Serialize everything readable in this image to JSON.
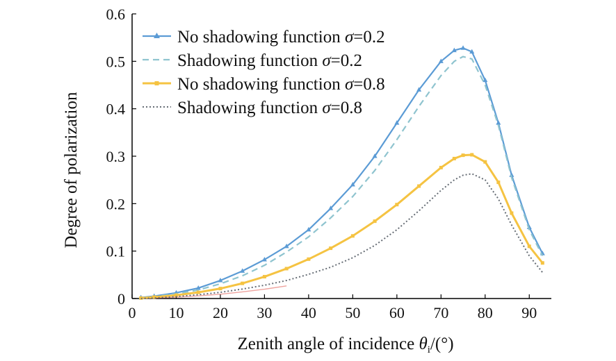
{
  "chart_data": {
    "type": "line",
    "title": "",
    "xlabel_main": "Zenith angle of incidence ",
    "xlabel_symbol": "θ",
    "xlabel_sub": "i",
    "xlabel_unit": "/(°)",
    "ylabel": "Degree of polarization",
    "xlim": [
      0,
      95
    ],
    "ylim": [
      0,
      0.6
    ],
    "xticks": [
      0,
      10,
      20,
      30,
      40,
      50,
      60,
      70,
      80,
      90
    ],
    "yticks": [
      "0",
      "0.1",
      "0.2",
      "0.3",
      "0.4",
      "0.5",
      "0.6"
    ],
    "grid": false,
    "legend_position": "top-left",
    "x": [
      2,
      5,
      10,
      15,
      20,
      25,
      30,
      35,
      40,
      45,
      50,
      55,
      60,
      65,
      70,
      73,
      75,
      77,
      80,
      83,
      86,
      90,
      93
    ],
    "series": [
      {
        "name_prefix": "No shadowing function ",
        "name_symbol": "σ",
        "name_suffix": "=0.2",
        "color": "#5b9bd5",
        "style": "solid-triangle",
        "values": [
          0.002,
          0.005,
          0.012,
          0.022,
          0.038,
          0.058,
          0.082,
          0.11,
          0.145,
          0.19,
          0.24,
          0.3,
          0.37,
          0.44,
          0.5,
          0.523,
          0.528,
          0.52,
          0.46,
          0.37,
          0.26,
          0.15,
          0.095
        ]
      },
      {
        "name_prefix": "Shadowing function ",
        "name_symbol": "σ",
        "name_suffix": "=0.2",
        "color": "#8fc4cf",
        "style": "dashed",
        "values": [
          0.001,
          0.004,
          0.01,
          0.018,
          0.031,
          0.048,
          0.07,
          0.098,
          0.13,
          0.17,
          0.215,
          0.27,
          0.335,
          0.405,
          0.47,
          0.5,
          0.51,
          0.505,
          0.45,
          0.365,
          0.255,
          0.145,
          0.09
        ]
      },
      {
        "name_prefix": "No shadowing function ",
        "name_symbol": "σ",
        "name_suffix": "=0.8",
        "color": "#f5c342",
        "style": "solid-square",
        "values": [
          0.001,
          0.003,
          0.007,
          0.013,
          0.021,
          0.032,
          0.046,
          0.063,
          0.083,
          0.106,
          0.132,
          0.163,
          0.198,
          0.237,
          0.276,
          0.295,
          0.302,
          0.303,
          0.288,
          0.245,
          0.18,
          0.11,
          0.075
        ]
      },
      {
        "name_prefix": "Shadowing function ",
        "name_symbol": "σ",
        "name_suffix": "=0.8",
        "color": "#666d75",
        "style": "dotted",
        "values": [
          0.0,
          0.001,
          0.004,
          0.008,
          0.013,
          0.02,
          0.028,
          0.038,
          0.051,
          0.066,
          0.086,
          0.112,
          0.145,
          0.185,
          0.228,
          0.25,
          0.26,
          0.263,
          0.25,
          0.21,
          0.155,
          0.09,
          0.055
        ]
      }
    ],
    "accent_red": "#e0574f"
  }
}
